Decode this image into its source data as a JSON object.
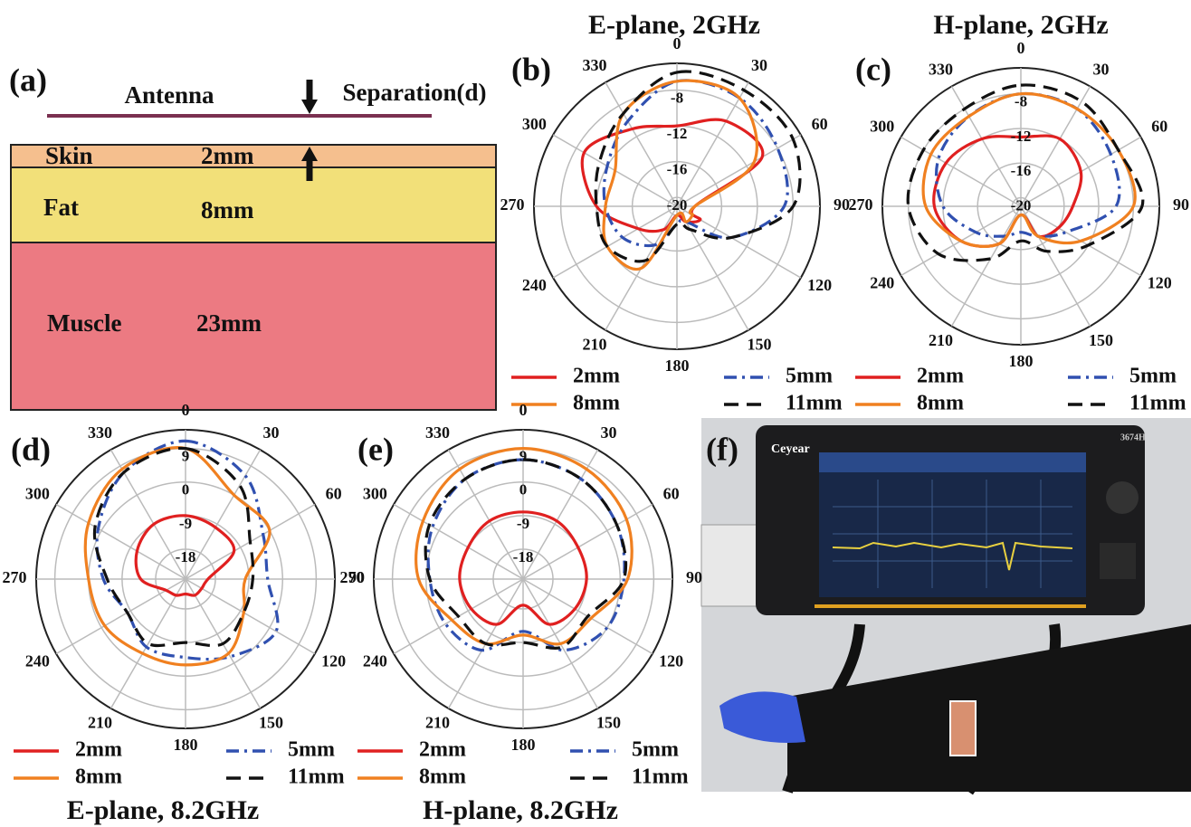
{
  "diagram": {
    "label": "(a)",
    "antenna": "Antenna",
    "separation": "Separation(d)",
    "layers": [
      {
        "name": "Skin",
        "thickness": "2mm"
      },
      {
        "name": "Fat",
        "thickness": "8mm"
      },
      {
        "name": "Muscle",
        "thickness": "23mm"
      }
    ]
  },
  "chart_data": [
    {
      "type": "polar",
      "panel_label": "(b)",
      "title": "E-plane, 2GHz",
      "x": [
        0,
        30,
        60,
        90,
        120,
        150,
        180,
        210,
        240,
        270,
        300,
        330
      ],
      "xticks": [
        0,
        30,
        60,
        90,
        120,
        150,
        180,
        210,
        240,
        270,
        300,
        330
      ],
      "rlim": [
        -21,
        -5
      ],
      "rticks": [
        -20,
        -16,
        -12,
        -8
      ],
      "series": [
        {
          "name": "2mm",
          "color": "#e02020",
          "linestyle": "solid",
          "values": [
            -12,
            -10,
            -10,
            -19,
            -18,
            -19,
            -20,
            -18,
            -16,
            -12,
            -9,
            -11
          ]
        },
        {
          "name": "5mm",
          "color": "#3050b0",
          "linestyle": "dashdot",
          "values": [
            -7,
            -7,
            -8,
            -9,
            -14,
            -19,
            -19,
            -16,
            -14,
            -13,
            -12,
            -10
          ]
        },
        {
          "name": "8mm",
          "color": "#f08020",
          "linestyle": "solid",
          "values": [
            -7,
            -7,
            -11,
            -19,
            -19,
            -19,
            -20,
            -13,
            -12,
            -13,
            -13,
            -9
          ]
        },
        {
          "name": "11mm",
          "color": "#111111",
          "linestyle": "dashed",
          "values": [
            -6,
            -6,
            -6,
            -8,
            -14,
            -18,
            -19,
            -14,
            -12,
            -12,
            -11,
            -9
          ]
        }
      ]
    },
    {
      "type": "polar",
      "panel_label": "(c)",
      "title": "H-plane, 2GHz",
      "x": [
        0,
        30,
        60,
        90,
        120,
        150,
        180,
        210,
        240,
        270,
        300,
        330
      ],
      "xticks": [
        0,
        30,
        60,
        90,
        120,
        150,
        180,
        210,
        240,
        270,
        300,
        330
      ],
      "rlim": [
        -21,
        -5
      ],
      "rticks": [
        -20,
        -16,
        -12,
        -8
      ],
      "series": [
        {
          "name": "2mm",
          "color": "#e02020",
          "linestyle": "solid",
          "values": [
            -13,
            -12,
            -13,
            -15,
            -16,
            -17,
            -20,
            -16,
            -13,
            -11,
            -11,
            -12
          ]
        },
        {
          "name": "5mm",
          "color": "#3050b0",
          "linestyle": "dashdot",
          "values": [
            -8,
            -8,
            -9,
            -10,
            -15,
            -17,
            -18,
            -17,
            -15,
            -12,
            -10,
            -9
          ]
        },
        {
          "name": "8mm",
          "color": "#f08020",
          "linestyle": "solid",
          "values": [
            -8,
            -8,
            -8,
            -8,
            -13,
            -17,
            -20,
            -16,
            -13,
            -10,
            -9,
            -9
          ]
        },
        {
          "name": "11mm",
          "color": "#111111",
          "linestyle": "dashed",
          "values": [
            -7,
            -7,
            -8,
            -7,
            -12,
            -15,
            -17,
            -14,
            -10,
            -8,
            -8,
            -8
          ]
        }
      ]
    },
    {
      "type": "polar",
      "panel_label": "(d)",
      "title": "E-plane, 8.2GHz",
      "x": [
        0,
        30,
        60,
        90,
        120,
        150,
        180,
        210,
        240,
        270,
        300,
        330
      ],
      "xticks": [
        0,
        30,
        60,
        90,
        120,
        150,
        180,
        210,
        240,
        270,
        300,
        330
      ],
      "rlim": [
        -26,
        14
      ],
      "rticks": [
        -18,
        -9,
        0,
        9
      ],
      "series": [
        {
          "name": "2mm",
          "color": "#e02020",
          "linestyle": "solid",
          "values": [
            -9,
            -10,
            -11,
            -20,
            -21,
            -21,
            -22,
            -21,
            -20,
            -14,
            -11,
            -9
          ]
        },
        {
          "name": "5mm",
          "color": "#3050b0",
          "linestyle": "dashdot",
          "values": [
            11,
            6,
            -2,
            -4,
            2,
            -2,
            -5,
            -5,
            -8,
            -4,
            1,
            7
          ]
        },
        {
          "name": "8mm",
          "color": "#f08020",
          "linestyle": "solid",
          "values": [
            9,
            0,
            0,
            -10,
            -8,
            -3,
            -3,
            -3,
            -1,
            0,
            4,
            8
          ]
        },
        {
          "name": "11mm",
          "color": "#111111",
          "linestyle": "dashed",
          "values": [
            9,
            3,
            -6,
            -8,
            -8,
            -6,
            -9,
            -6,
            -8,
            -5,
            2,
            7
          ]
        }
      ]
    },
    {
      "type": "polar",
      "panel_label": "(e)",
      "title": "H-plane, 8.2GHz",
      "x": [
        0,
        30,
        60,
        90,
        120,
        150,
        180,
        210,
        240,
        270,
        300,
        330
      ],
      "xticks": [
        0,
        30,
        60,
        90,
        120,
        150,
        180,
        210,
        240,
        270,
        300,
        330
      ],
      "rlim": [
        -26,
        14
      ],
      "rticks": [
        -18,
        -9,
        0,
        9
      ],
      "series": [
        {
          "name": "2mm",
          "color": "#e02020",
          "linestyle": "solid",
          "values": [
            -8,
            -8,
            -9,
            -9,
            -10,
            -12,
            -19,
            -12,
            -10,
            -9,
            -9,
            -8
          ]
        },
        {
          "name": "5mm",
          "color": "#3050b0",
          "linestyle": "dashdot",
          "values": [
            6,
            5,
            3,
            1,
            0,
            -4,
            -12,
            -4,
            -2,
            -1,
            2,
            5
          ]
        },
        {
          "name": "8mm",
          "color": "#f08020",
          "linestyle": "solid",
          "values": [
            9,
            8,
            6,
            2,
            -5,
            -6,
            -11,
            -6,
            -4,
            2,
            5,
            8
          ]
        },
        {
          "name": "11mm",
          "color": "#111111",
          "linestyle": "dashed",
          "values": [
            6,
            5,
            3,
            1,
            -6,
            -5,
            -9,
            -6,
            -6,
            -1,
            3,
            5
          ]
        }
      ]
    }
  ],
  "photo": {
    "label": "(f)",
    "brand": "Ceyear",
    "model": "3674H"
  }
}
